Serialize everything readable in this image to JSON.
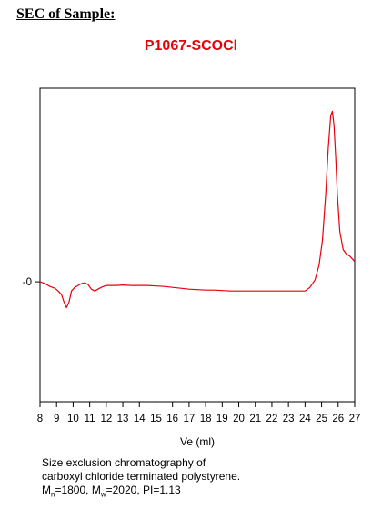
{
  "heading": "SEC of Sample:",
  "sample_name": "P1067-SCOCl",
  "caption": {
    "line1": "Size exclusion chromatography of",
    "line2": "carboxyl chloride terminated polystyrene.",
    "mn_symbol": "M",
    "mn_sub": "n",
    "mn_value": "=1800, ",
    "mw_symbol": "M",
    "mw_sub": "w",
    "mw_value": "=2020, PI=1.13"
  },
  "colors": {
    "trace": "#e8000b",
    "axis": "#000000"
  },
  "chart_data": {
    "type": "line",
    "title": "P1067-SCOCl",
    "xlabel": "Ve (ml)",
    "ylabel": "",
    "xlim": [
      8,
      27
    ],
    "ylim": [
      -1.3,
      2.1
    ],
    "x_ticks": [
      8,
      9,
      10,
      11,
      12,
      13,
      14,
      15,
      16,
      17,
      18,
      19,
      20,
      21,
      22,
      23,
      24,
      25,
      26,
      27
    ],
    "y_tick_labels": [
      {
        "value": 0,
        "label": "-0"
      }
    ],
    "grid": false,
    "series": [
      {
        "x": [
          8.0,
          8.3,
          8.6,
          8.9,
          9.1,
          9.3,
          9.45,
          9.6,
          9.75,
          9.9,
          10.1,
          10.3,
          10.5,
          10.7,
          10.9,
          11.1,
          11.3,
          11.5,
          11.7,
          12.0,
          12.3,
          12.6,
          13.0,
          13.5,
          14.0,
          14.5,
          15.0,
          15.5,
          16.0,
          16.5,
          17.0,
          17.5,
          18.0,
          18.5,
          19.0,
          19.5,
          20.0,
          20.5,
          21.0,
          21.5,
          22.0,
          22.5,
          23.0,
          23.5,
          24.0,
          24.3,
          24.6,
          24.85,
          25.05,
          25.25,
          25.4,
          25.55,
          25.65,
          25.75,
          25.85,
          25.95,
          26.1,
          26.3,
          26.5,
          26.7,
          26.85,
          27.0
        ],
        "y": [
          0.0,
          -0.02,
          -0.05,
          -0.07,
          -0.1,
          -0.14,
          -0.22,
          -0.28,
          -0.22,
          -0.1,
          -0.06,
          -0.04,
          -0.02,
          -0.01,
          -0.03,
          -0.08,
          -0.1,
          -0.08,
          -0.06,
          -0.04,
          -0.04,
          -0.04,
          -0.035,
          -0.04,
          -0.04,
          -0.04,
          -0.045,
          -0.05,
          -0.06,
          -0.07,
          -0.08,
          -0.085,
          -0.09,
          -0.09,
          -0.095,
          -0.1,
          -0.1,
          -0.1,
          -0.1,
          -0.1,
          -0.1,
          -0.1,
          -0.1,
          -0.1,
          -0.1,
          -0.06,
          0.02,
          0.18,
          0.45,
          0.95,
          1.45,
          1.8,
          1.85,
          1.7,
          1.35,
          0.95,
          0.55,
          0.35,
          0.3,
          0.28,
          0.25,
          0.22
        ]
      }
    ]
  }
}
